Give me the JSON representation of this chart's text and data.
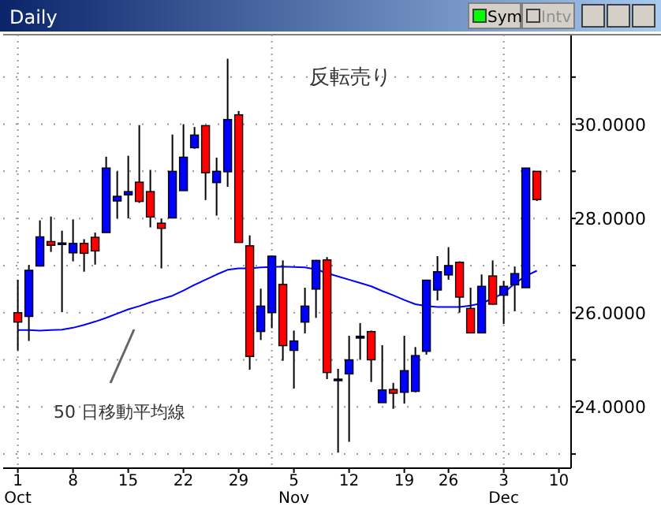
{
  "chart_data": {
    "type": "candlestick",
    "title": "Daily",
    "categories": [
      "1",
      null,
      null,
      null,
      null,
      "8",
      null,
      null,
      null,
      null,
      "15",
      null,
      null,
      null,
      null,
      "22",
      null,
      null,
      null,
      null,
      "29",
      null,
      null,
      null,
      null,
      "5",
      null,
      null,
      null,
      null,
      "12",
      null,
      null,
      null,
      null,
      "19",
      null,
      null,
      null,
      "26",
      null,
      null,
      null,
      null,
      "3",
      null,
      null,
      null,
      null,
      "10"
    ],
    "ohlc": [
      [
        26.0,
        26.7,
        25.2,
        25.8
      ],
      [
        25.92,
        27.01,
        25.4,
        26.9
      ],
      [
        26.99,
        27.96,
        26.98,
        27.61
      ],
      [
        27.51,
        28.04,
        27.29,
        27.43
      ],
      [
        27.47,
        27.74,
        26.01,
        27.48
      ],
      [
        27.27,
        27.98,
        27.09,
        27.47
      ],
      [
        27.47,
        27.56,
        26.87,
        27.26
      ],
      [
        27.6,
        27.7,
        27.02,
        27.31
      ],
      [
        27.7,
        29.31,
        27.7,
        29.07
      ],
      [
        28.37,
        29.0,
        28.0,
        28.47
      ],
      [
        28.5,
        29.33,
        28.0,
        28.57
      ],
      [
        28.77,
        29.98,
        28.33,
        28.36
      ],
      [
        28.57,
        29.03,
        27.81,
        28.03
      ],
      [
        27.9,
        28.0,
        26.94,
        27.79
      ],
      [
        28.01,
        29.78,
        28.0,
        29.0
      ],
      [
        28.59,
        30.0,
        28.59,
        29.3
      ],
      [
        29.5,
        29.94,
        29.48,
        29.77
      ],
      [
        29.97,
        29.98,
        28.39,
        28.97
      ],
      [
        28.76,
        29.29,
        28.06,
        29.0
      ],
      [
        28.99,
        31.39,
        28.67,
        30.1
      ],
      [
        30.2,
        30.28,
        27.49,
        27.49
      ],
      [
        27.42,
        27.64,
        24.79,
        25.07
      ],
      [
        25.6,
        26.51,
        25.42,
        26.14
      ],
      [
        26.0,
        27.2,
        25.67,
        27.2
      ],
      [
        26.6,
        27.11,
        24.98,
        25.3
      ],
      [
        25.2,
        25.62,
        24.39,
        25.4
      ],
      [
        25.8,
        26.53,
        25.56,
        26.14
      ],
      [
        26.5,
        27.12,
        25.89,
        27.11
      ],
      [
        27.12,
        27.18,
        24.59,
        24.73
      ],
      [
        24.58,
        24.81,
        23.03,
        24.59
      ],
      [
        24.7,
        25.51,
        23.26,
        25.0
      ],
      [
        25.46,
        25.78,
        25.0,
        25.5
      ],
      [
        25.6,
        25.62,
        24.53,
        25.0
      ],
      [
        24.09,
        25.31,
        24.09,
        24.36
      ],
      [
        24.37,
        24.51,
        23.96,
        24.29
      ],
      [
        24.31,
        25.51,
        24.07,
        24.77
      ],
      [
        24.33,
        25.27,
        24.31,
        25.09
      ],
      [
        25.18,
        26.7,
        25.11,
        26.69
      ],
      [
        26.48,
        27.2,
        26.26,
        26.87
      ],
      [
        26.8,
        27.39,
        26.7,
        27.0
      ],
      [
        27.07,
        27.09,
        26.0,
        26.33
      ],
      [
        26.09,
        26.53,
        25.56,
        25.57
      ],
      [
        25.57,
        26.81,
        25.56,
        26.56
      ],
      [
        26.78,
        27.11,
        26.17,
        26.18
      ],
      [
        26.37,
        26.67,
        25.76,
        26.56
      ],
      [
        26.59,
        26.98,
        26.03,
        26.83
      ],
      [
        26.53,
        29.07,
        26.53,
        29.07
      ],
      [
        29.0,
        29.0,
        28.37,
        28.4
      ],
      null,
      null
    ],
    "colors": [
      "#ff0000",
      "#0000ff",
      "#0000ff",
      "#ff0000",
      "#000080",
      "#0000ff",
      "#ff0000",
      "#ff0000",
      "#0000ff",
      "#0000ff",
      "#0000ff",
      "#ff0000",
      "#ff0000",
      "#ff0000",
      "#0000ff",
      "#0000ff",
      "#0000ff",
      "#ff0000",
      "#0000ff",
      "#0000ff",
      "#ff0000",
      "#ff0000",
      "#0000ff",
      "#0000ff",
      "#ff0000",
      "#0000ff",
      "#0000ff",
      "#0000ff",
      "#ff0000",
      "#000080",
      "#0000ff",
      "#000080",
      "#ff0000",
      "#0000ff",
      "#ff0000",
      "#0000ff",
      "#0000ff",
      "#0000ff",
      "#0000ff",
      "#0000ff",
      "#ff0000",
      "#ff0000",
      "#0000ff",
      "#ff0000",
      "#0000ff",
      "#0000ff",
      "#0000ff",
      "#ff0000",
      null,
      null
    ],
    "series": [
      {
        "type": "line",
        "color": "#0000ff",
        "values": [
          25.63,
          25.63,
          25.62,
          25.63,
          25.64,
          25.68,
          25.74,
          25.81,
          25.89,
          25.98,
          26.07,
          26.14,
          26.22,
          26.29,
          26.36,
          26.47,
          26.59,
          26.7,
          26.81,
          26.91,
          26.94,
          26.94,
          26.96,
          26.97,
          26.98,
          26.97,
          26.96,
          26.92,
          26.84,
          26.77,
          26.7,
          26.63,
          26.56,
          26.46,
          26.37,
          26.27,
          26.18,
          26.14,
          26.12,
          26.12,
          26.12,
          26.15,
          26.2,
          26.3,
          26.42,
          26.62,
          26.78,
          26.89,
          null,
          null
        ]
      }
    ],
    "ylim": [
      22.7,
      31.9
    ],
    "yticks": [
      {
        "value": 23,
        "label": null
      },
      {
        "value": 24,
        "label": "24.0000"
      },
      {
        "value": 25,
        "label": null
      },
      {
        "value": 26,
        "label": "26.0000"
      },
      {
        "value": 27,
        "label": null
      },
      {
        "value": 28,
        "label": "28.0000"
      },
      {
        "value": 29,
        "label": null
      },
      {
        "value": 30,
        "label": "30.0000"
      },
      {
        "value": 31,
        "label": null
      }
    ],
    "grid": true,
    "annotations": [
      "反転売り",
      "50 日移動平均線",
      "Sym",
      "Intv",
      "Oct",
      "Nov",
      "Dec"
    ]
  }
}
